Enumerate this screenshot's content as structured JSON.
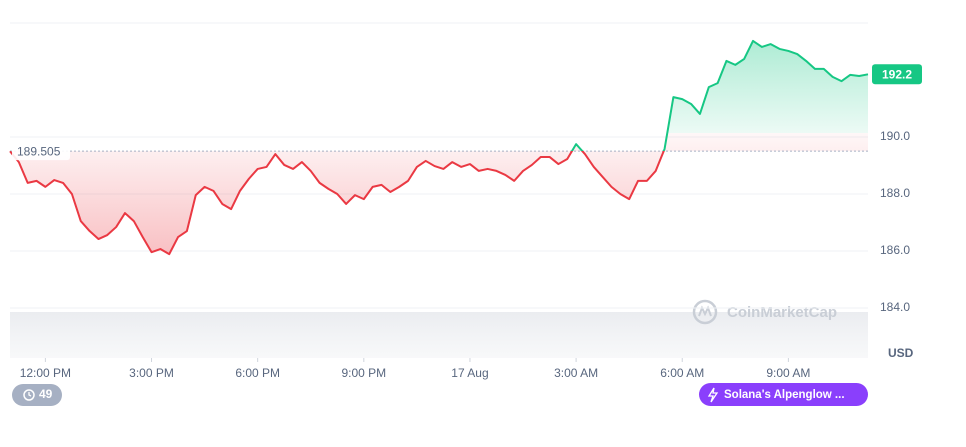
{
  "chart_data": {
    "type": "line",
    "currency": "USD",
    "baseline": 189.505,
    "last_price": 192.2,
    "xlim": [
      -1,
      23.25
    ],
    "ylim": [
      184,
      194
    ],
    "yticks": [
      {
        "value": 184,
        "label": "184.0"
      },
      {
        "value": 186,
        "label": "186.0"
      },
      {
        "value": 188,
        "label": "188.0"
      },
      {
        "value": 190,
        "label": "190.0"
      }
    ],
    "xticks": [
      {
        "value": 0,
        "label": "12:00 PM"
      },
      {
        "value": 3,
        "label": "3:00 PM"
      },
      {
        "value": 6,
        "label": "6:00 PM"
      },
      {
        "value": 9,
        "label": "9:00 PM"
      },
      {
        "value": 12,
        "label": "17 Aug"
      },
      {
        "value": 15,
        "label": "3:00 AM"
      },
      {
        "value": 18,
        "label": "6:00 AM"
      },
      {
        "value": 21,
        "label": "9:00 AM"
      }
    ],
    "up_color": "#16c784",
    "down_color": "#ea3943",
    "grid": true,
    "x": [
      -1,
      -0.75,
      -0.5,
      -0.25,
      0,
      0.25,
      0.5,
      0.75,
      1,
      1.25,
      1.5,
      1.75,
      2,
      2.25,
      2.5,
      2.75,
      3,
      3.25,
      3.5,
      3.75,
      4,
      4.25,
      4.5,
      4.75,
      5,
      5.25,
      5.5,
      5.75,
      6,
      6.25,
      6.5,
      6.75,
      7,
      7.25,
      7.5,
      7.75,
      8,
      8.25,
      8.5,
      8.75,
      9,
      9.25,
      9.5,
      9.75,
      10,
      10.25,
      10.5,
      10.75,
      11,
      11.25,
      11.5,
      11.75,
      12,
      12.25,
      12.5,
      12.75,
      13,
      13.25,
      13.5,
      13.75,
      14,
      14.25,
      14.5,
      14.75,
      15,
      15.25,
      15.5,
      15.75,
      16,
      16.25,
      16.5,
      16.75,
      17,
      17.25,
      17.5,
      17.75,
      18,
      18.25,
      18.5,
      18.75,
      19,
      19.25,
      19.5,
      19.75,
      20,
      20.25,
      20.5,
      20.75,
      21,
      21.25,
      21.5,
      21.75,
      22,
      22.25,
      22.5,
      22.75,
      23,
      23.25
    ],
    "values": [
      189.5,
      189.12,
      188.39,
      188.46,
      188.25,
      188.49,
      188.39,
      188.0,
      187.05,
      186.7,
      186.42,
      186.56,
      186.84,
      187.33,
      187.05,
      186.49,
      185.96,
      186.07,
      185.89,
      186.49,
      186.7,
      187.96,
      188.25,
      188.11,
      187.65,
      187.47,
      188.11,
      188.53,
      188.88,
      188.95,
      189.4,
      189.02,
      188.88,
      189.12,
      188.81,
      188.39,
      188.18,
      188.0,
      187.65,
      187.96,
      187.82,
      188.25,
      188.32,
      188.07,
      188.25,
      188.46,
      188.95,
      189.16,
      188.98,
      188.88,
      189.12,
      188.95,
      189.05,
      188.81,
      188.88,
      188.81,
      188.67,
      188.46,
      188.81,
      189.02,
      189.3,
      189.3,
      189.05,
      189.23,
      189.75,
      189.4,
      188.95,
      188.6,
      188.25,
      188.0,
      187.82,
      188.46,
      188.46,
      188.81,
      189.58,
      191.4,
      191.33,
      191.16,
      190.81,
      191.75,
      191.89,
      192.67,
      192.53,
      192.74,
      193.37,
      193.16,
      193.26,
      193.09,
      193.02,
      192.91,
      192.67,
      192.39,
      192.39,
      192.11,
      191.96,
      192.18,
      192.14,
      192.2
    ]
  },
  "ui": {
    "watermark": "CoinMarketCap",
    "badge_count": 49,
    "news_button": "Solana's Alpenglow ..."
  }
}
